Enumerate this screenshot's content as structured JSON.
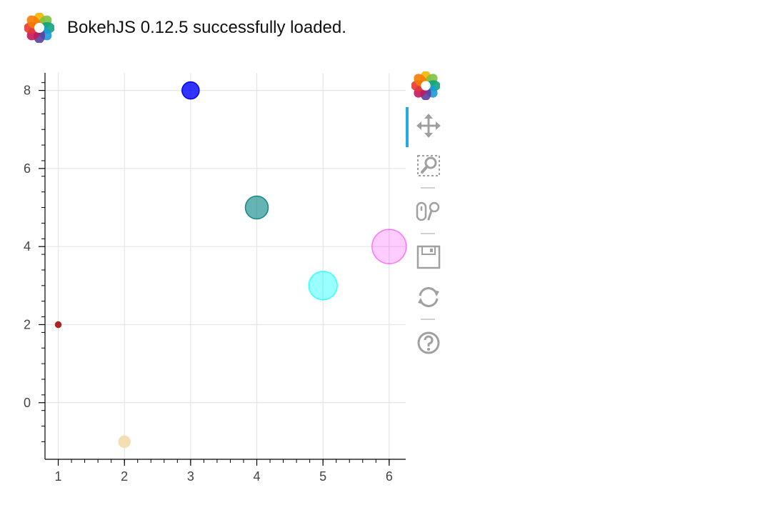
{
  "banner": {
    "message": "BokehJS 0.12.5 successfully loaded.",
    "logo_icon": "bokeh-logo-icon"
  },
  "toolbar": {
    "tools": [
      {
        "name": "pan-tool",
        "icon": "pan-icon",
        "active": true
      },
      {
        "name": "box-zoom-tool",
        "icon": "box-zoom-icon",
        "active": false
      },
      {
        "name": "wheel-zoom-tool",
        "icon": "wheel-zoom-icon",
        "active": false
      },
      {
        "name": "save-tool",
        "icon": "save-icon",
        "active": false
      },
      {
        "name": "reset-tool",
        "icon": "reset-icon",
        "active": false
      },
      {
        "name": "help-tool",
        "icon": "help-icon",
        "active": false
      }
    ],
    "active_color": "#26aae1",
    "icon_color": "#a0a0a0"
  },
  "chart_data": {
    "type": "scatter",
    "title": "",
    "xlabel": "",
    "ylabel": "",
    "xlim": [
      0.8,
      6.25
    ],
    "ylim": [
      -1.45,
      8.45
    ],
    "xticks": [
      1,
      2,
      3,
      4,
      5,
      6
    ],
    "yticks": [
      0,
      2,
      4,
      6,
      8
    ],
    "grid": true,
    "points": [
      {
        "x": 1,
        "y": 2,
        "size": 1,
        "color": "#b22222",
        "alpha": 1.0
      },
      {
        "x": 2,
        "y": -1,
        "size": 2,
        "color": "#f5deb3",
        "alpha": 1.0
      },
      {
        "x": 3,
        "y": 8,
        "size": 3,
        "color": "#0000ff",
        "alpha": 0.8
      },
      {
        "x": 4,
        "y": 5,
        "size": 4,
        "color": "#008080",
        "alpha": 0.6
      },
      {
        "x": 5,
        "y": 3,
        "size": 5,
        "color": "#00ffff",
        "alpha": 0.4
      },
      {
        "x": 6,
        "y": 4,
        "size": 6,
        "color": "#ff00ff",
        "alpha": 0.2
      }
    ]
  }
}
